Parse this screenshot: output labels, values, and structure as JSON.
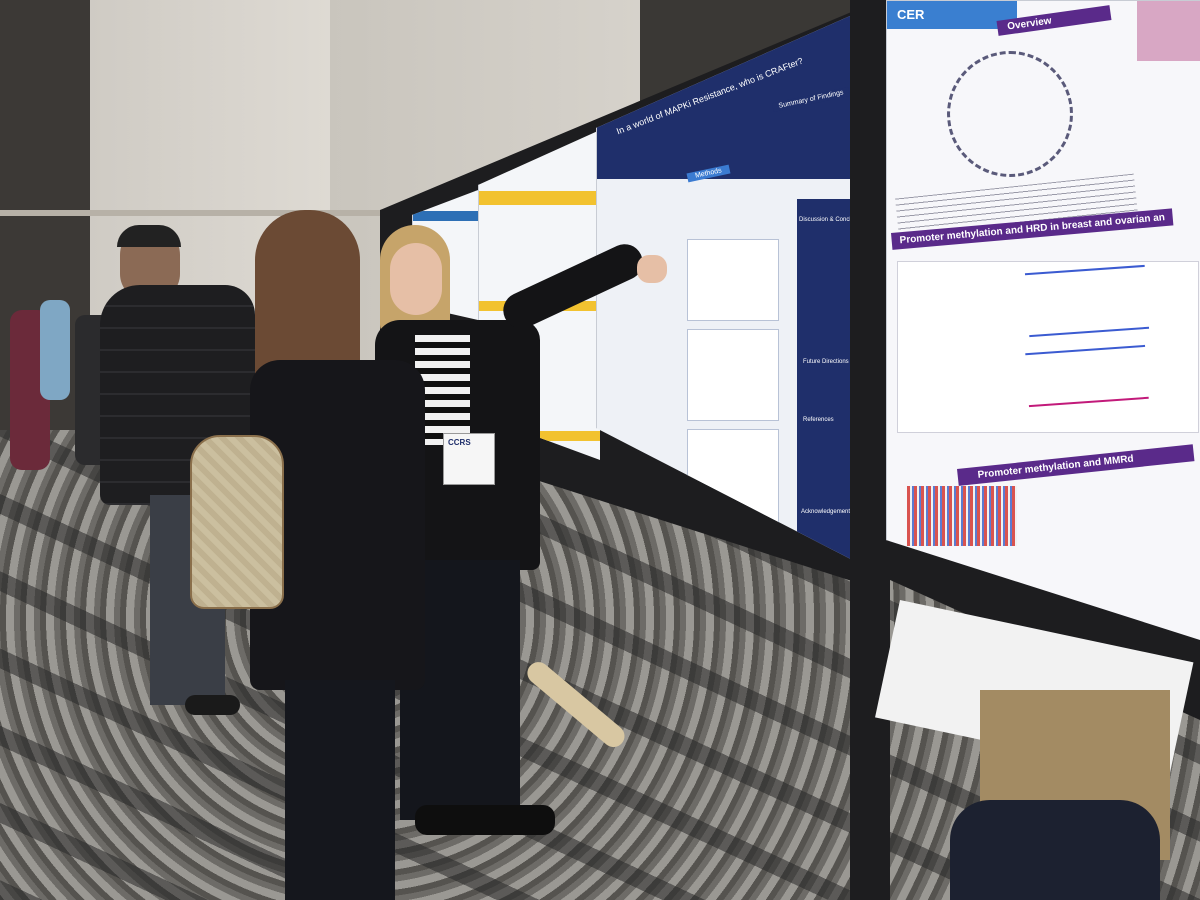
{
  "scene": {
    "description_colors": {
      "navy": "#1f2f6b",
      "purple": "#5a2a8a",
      "magenta": "#c21a7a",
      "poster_bg": "#f4f6f9",
      "board": "#1d1d1f"
    }
  },
  "poster_center": {
    "title": "In a world of MAPKi Resistance, who is CRAFter?",
    "section_methods": "Methods",
    "section_summary": "Summary of Findings",
    "section_discussion": "Discussion & Conclusion",
    "section_future": "Future Directions",
    "section_references": "References",
    "section_ack": "Acknowledgements"
  },
  "poster_right": {
    "brand": "CER",
    "section_overview": "Overview",
    "section_hrd": "Promoter methylation and HRD in breast and ovarian an",
    "section_mmr": "Promoter methylation and MMRd"
  },
  "badge": {
    "label": "CCRS"
  }
}
